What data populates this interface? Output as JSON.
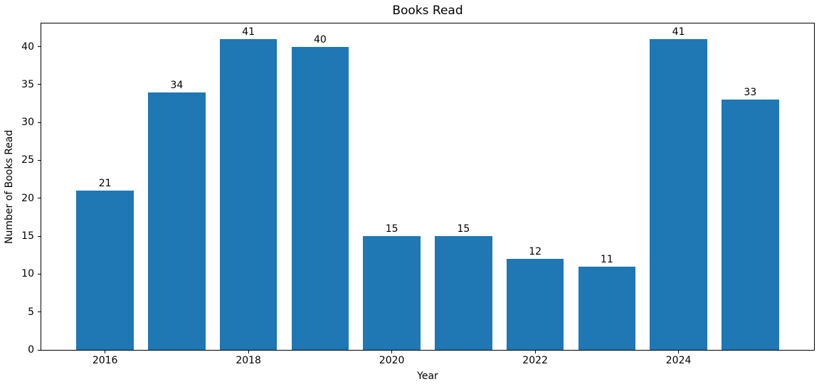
{
  "chart_data": {
    "type": "bar",
    "title": "Books Read",
    "xlabel": "Year",
    "ylabel": "Number of Books Read",
    "categories": [
      2016,
      2017,
      2018,
      2019,
      2020,
      2021,
      2022,
      2023,
      2024,
      2025
    ],
    "values": [
      21,
      34,
      41,
      40,
      15,
      15,
      12,
      11,
      41,
      33
    ],
    "value_labels_shown": true,
    "bar_color": "#1f77b4",
    "bar_width": 0.8,
    "xticks": [
      2016,
      2018,
      2020,
      2022,
      2024
    ],
    "yticks": [
      0,
      5,
      10,
      15,
      20,
      25,
      30,
      35,
      40
    ],
    "xlim": [
      2015.11,
      2025.89
    ],
    "ylim": [
      0,
      43.05
    ],
    "grid": false,
    "legend_shown": false,
    "axis_color": "#000000",
    "background_color": "#ffffff"
  }
}
